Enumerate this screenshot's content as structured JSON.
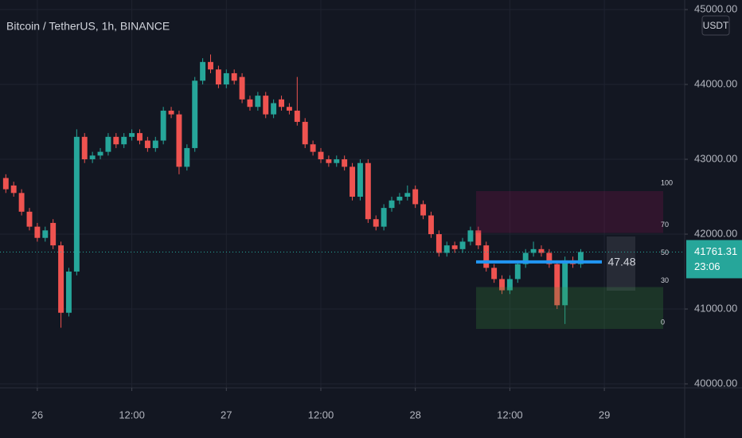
{
  "chart_data": {
    "type": "candlestick",
    "title": "Bitcoin / TetherUS, 1h, BINANCE",
    "currency_button": "USDT",
    "up_color": "#26a69a",
    "down_color": "#ef5350",
    "x": [
      0,
      1,
      2,
      3,
      4,
      5,
      6,
      7,
      8,
      9,
      10,
      11,
      12,
      13,
      14,
      15,
      16,
      17,
      18,
      19,
      20,
      21,
      22,
      23,
      24,
      25,
      26,
      27,
      28,
      29,
      30,
      31,
      32,
      33,
      34,
      35,
      36,
      37,
      38,
      39,
      40,
      41,
      42,
      43,
      44,
      45,
      46,
      47,
      48,
      49,
      50,
      51,
      52,
      53,
      54,
      55,
      56,
      57,
      58,
      59,
      60,
      61,
      62,
      63,
      64,
      65,
      66,
      67,
      68,
      69,
      70,
      71,
      72,
      73
    ],
    "open": [
      42750,
      42650,
      42550,
      42300,
      42100,
      41950,
      42150,
      41850,
      40950,
      41500,
      43300,
      43000,
      43050,
      43100,
      43300,
      43200,
      43300,
      43350,
      43250,
      43150,
      43250,
      43650,
      43600,
      42900,
      43150,
      44050,
      44300,
      44200,
      44000,
      44150,
      44100,
      43800,
      43700,
      43850,
      43600,
      43800,
      43700,
      43650,
      43500,
      43200,
      43100,
      43000,
      42950,
      43000,
      42900,
      42500,
      42950,
      42200,
      42100,
      42350,
      42450,
      42500,
      42600,
      42400,
      42250,
      42000,
      41750,
      41850,
      41800,
      41900,
      42050,
      41850,
      41550,
      41400,
      41250,
      41400,
      41600,
      41750,
      41800,
      41750,
      41600,
      41050,
      41650,
      41600
    ],
    "high": [
      42800,
      42700,
      42600,
      42350,
      42150,
      42100,
      42200,
      41900,
      41550,
      43400,
      43350,
      43100,
      43150,
      43350,
      43350,
      43350,
      43400,
      43400,
      43300,
      43300,
      43700,
      43700,
      43650,
      43200,
      44100,
      44350,
      44400,
      44250,
      44200,
      44200,
      44150,
      43850,
      43900,
      43900,
      43800,
      43850,
      43750,
      44100,
      43550,
      43250,
      43150,
      43050,
      43050,
      43050,
      42950,
      43000,
      43000,
      42250,
      42400,
      42500,
      42550,
      42650,
      42650,
      42450,
      42300,
      42050,
      41900,
      41900,
      41950,
      42100,
      42100,
      41900,
      41600,
      41450,
      41450,
      41650,
      41800,
      41900,
      41850,
      41800,
      41650,
      41700,
      41700,
      41800
    ],
    "low": [
      42550,
      42500,
      42250,
      42050,
      41900,
      41900,
      41800,
      40750,
      40900,
      41450,
      42950,
      42950,
      43000,
      43050,
      43150,
      43150,
      43250,
      43200,
      43100,
      43100,
      43200,
      43550,
      42800,
      42850,
      43100,
      44000,
      44150,
      43950,
      43950,
      44000,
      43750,
      43650,
      43650,
      43550,
      43550,
      43650,
      43600,
      43450,
      43150,
      43050,
      42950,
      42900,
      42900,
      42850,
      42450,
      42450,
      42150,
      42050,
      42050,
      42300,
      42400,
      42450,
      42350,
      42200,
      41950,
      41700,
      41700,
      41750,
      41750,
      41850,
      41800,
      41500,
      41350,
      41200,
      41200,
      41350,
      41550,
      41700,
      41700,
      41550,
      41000,
      40800,
      41550,
      41550
    ],
    "close": [
      42600,
      42550,
      42300,
      42100,
      41950,
      42050,
      41850,
      40950,
      41500,
      43300,
      43000,
      43050,
      43100,
      43300,
      43200,
      43300,
      43350,
      43250,
      43150,
      43250,
      43650,
      43600,
      42900,
      43150,
      44050,
      44300,
      44200,
      44000,
      44150,
      44050,
      43800,
      43700,
      43850,
      43600,
      43750,
      43700,
      43650,
      43500,
      43200,
      43100,
      43000,
      42950,
      43000,
      42900,
      42500,
      42950,
      42200,
      42100,
      42350,
      42450,
      42500,
      42550,
      42400,
      42250,
      42000,
      41750,
      41850,
      41800,
      41900,
      42050,
      41850,
      41550,
      41400,
      41250,
      41400,
      41600,
      41750,
      41800,
      41750,
      41600,
      41050,
      41650,
      41600,
      41761.31
    ],
    "xlim": [
      -0.74,
      86.2
    ],
    "xticks": [
      {
        "value": 4,
        "label": "26"
      },
      {
        "value": 16,
        "label": "12:00"
      },
      {
        "value": 28,
        "label": "27"
      },
      {
        "value": 40,
        "label": "12:00"
      },
      {
        "value": 52,
        "label": "28"
      },
      {
        "value": 64,
        "label": "12:00"
      },
      {
        "value": 76,
        "label": "29"
      }
    ],
    "ylim": [
      39947,
      45128
    ],
    "yticks": [
      {
        "value": 40000,
        "label": "40000.00"
      },
      {
        "value": 41000,
        "label": "41000.00"
      },
      {
        "value": 42000,
        "label": "42000.00"
      },
      {
        "value": 43000,
        "label": "43000.00"
      },
      {
        "value": 44000,
        "label": "44000.00"
      },
      {
        "value": 45000,
        "label": "45000.00"
      }
    ],
    "grid": true,
    "last_price": {
      "value": 41761.31,
      "label": "41761.31"
    },
    "countdown": "23:06",
    "overlay": {
      "levels": [
        100,
        70,
        50,
        30,
        0
      ],
      "value": 47.48
    }
  }
}
